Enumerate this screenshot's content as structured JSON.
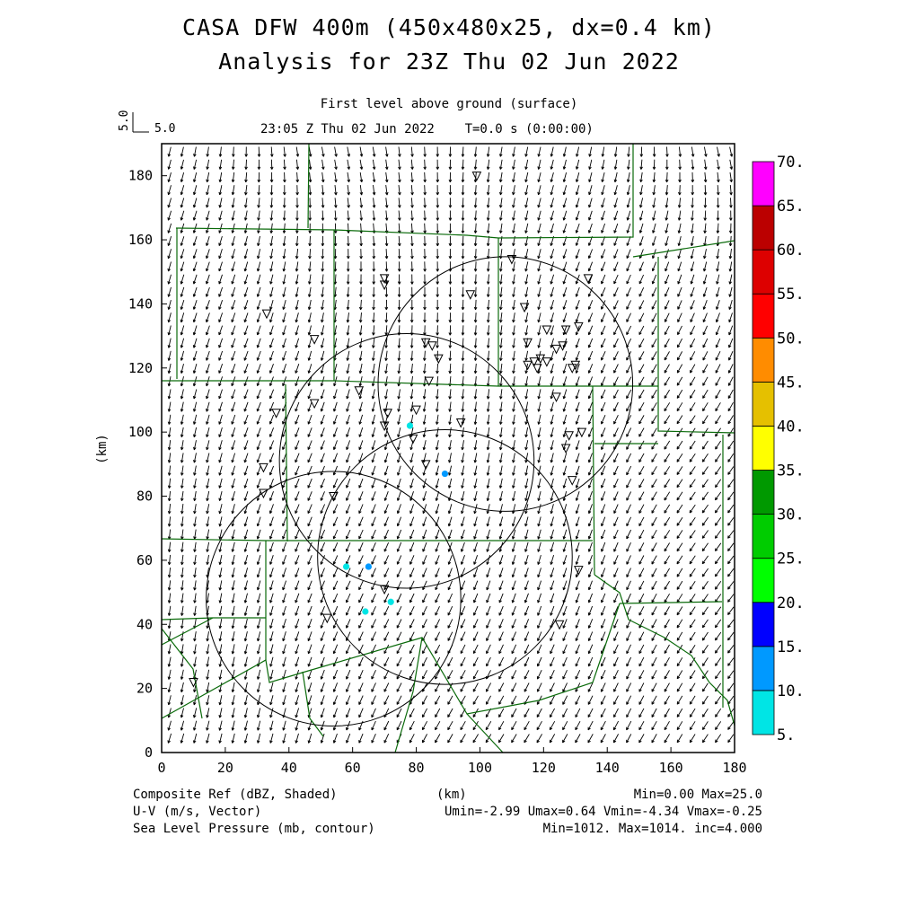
{
  "title_line1": "CASA DFW 400m (450x480x25, dx=0.4 km)",
  "title_line2": "Analysis for 23Z Thu 02 Jun 2022",
  "level_label": "First level above ground (surface)",
  "time_label": "23:05 Z Thu 02 Jun 2022    T=0.0 s (0:00:00)",
  "vector_scale": {
    "vertical_label": "5.0",
    "horizontal_label": "5.0"
  },
  "axes": {
    "xlabel": "(km)",
    "ylabel": "(km)",
    "xlim": [
      0,
      180
    ],
    "ylim": [
      0,
      190
    ],
    "xticks": [
      0,
      20,
      40,
      60,
      80,
      100,
      120,
      140,
      160,
      180
    ],
    "yticks": [
      0,
      20,
      40,
      60,
      80,
      100,
      120,
      140,
      160,
      180
    ]
  },
  "colorbar": {
    "labels": [
      "5.",
      "10.",
      "15.",
      "20.",
      "25.",
      "30.",
      "35.",
      "40.",
      "45.",
      "50.",
      "55.",
      "60.",
      "65.",
      "70."
    ],
    "colors": [
      "#00e5e5",
      "#0099ff",
      "#0000ff",
      "#00ff00",
      "#00cc00",
      "#009900",
      "#ffff00",
      "#e5c000",
      "#ff8c00",
      "#ff0000",
      "#dd0000",
      "#bb0000",
      "#ff00ff"
    ]
  },
  "footer": {
    "field1": "Composite Ref (dBZ, Shaded)",
    "field1_stats": "Min=0.00 Max=25.0",
    "field2": "U-V (m/s, Vector)",
    "field2_stats": "Umin=-2.99 Umax=0.64 Vmin=-4.34 Vmax=-0.25",
    "field3": "Sea Level Pressure (mb, contour)",
    "field3_stats": "Min=1012. Max=1014. inc=4.000",
    "xunit": "(km)"
  },
  "chart_data": {
    "type": "map",
    "radar_rings_km": [
      {
        "cx": 77,
        "cy": 91,
        "r": 40
      },
      {
        "cx": 89,
        "cy": 61,
        "r": 40
      },
      {
        "cx": 54,
        "cy": 48,
        "r": 40
      },
      {
        "cx": 108,
        "cy": 115,
        "r": 40
      }
    ],
    "stations_km": [
      [
        99,
        180
      ],
      [
        110,
        154
      ],
      [
        134,
        148
      ],
      [
        70,
        148
      ],
      [
        70,
        146
      ],
      [
        97,
        143
      ],
      [
        114,
        139
      ],
      [
        33,
        137
      ],
      [
        121,
        132
      ],
      [
        131,
        133
      ],
      [
        127,
        132
      ],
      [
        48,
        129
      ],
      [
        83,
        128
      ],
      [
        85,
        127
      ],
      [
        115,
        128
      ],
      [
        126,
        127
      ],
      [
        124,
        126
      ],
      [
        87,
        123
      ],
      [
        117,
        122
      ],
      [
        119,
        123
      ],
      [
        121,
        122
      ],
      [
        115,
        121
      ],
      [
        118,
        120
      ],
      [
        130,
        121
      ],
      [
        129,
        120
      ],
      [
        84,
        116
      ],
      [
        62,
        113
      ],
      [
        124,
        111
      ],
      [
        48,
        109
      ],
      [
        36,
        106
      ],
      [
        80,
        107
      ],
      [
        71,
        106
      ],
      [
        70,
        102
      ],
      [
        94,
        103
      ],
      [
        79,
        98
      ],
      [
        128,
        99
      ],
      [
        132,
        100
      ],
      [
        127,
        95
      ],
      [
        83,
        90
      ],
      [
        32,
        89
      ],
      [
        129,
        85
      ],
      [
        32,
        81
      ],
      [
        54,
        80
      ],
      [
        131,
        57
      ],
      [
        70,
        51
      ],
      [
        52,
        42
      ],
      [
        125,
        40
      ],
      [
        10,
        22
      ]
    ],
    "reflectivity_points_km": [
      {
        "x": 78,
        "y": 102,
        "dbz": 7
      },
      {
        "x": 89,
        "y": 87,
        "dbz": 12
      },
      {
        "x": 58,
        "y": 58,
        "dbz": 8
      },
      {
        "x": 65,
        "y": 58,
        "dbz": 12
      },
      {
        "x": 64,
        "y": 44,
        "dbz": 6
      },
      {
        "x": 72,
        "y": 47,
        "dbz": 6
      }
    ],
    "wind_vector_u_range": [
      -2.99,
      0.64
    ],
    "wind_vector_v_range": [
      -4.34,
      -0.25
    ],
    "slp_range_mb": [
      1012,
      1014
    ]
  }
}
